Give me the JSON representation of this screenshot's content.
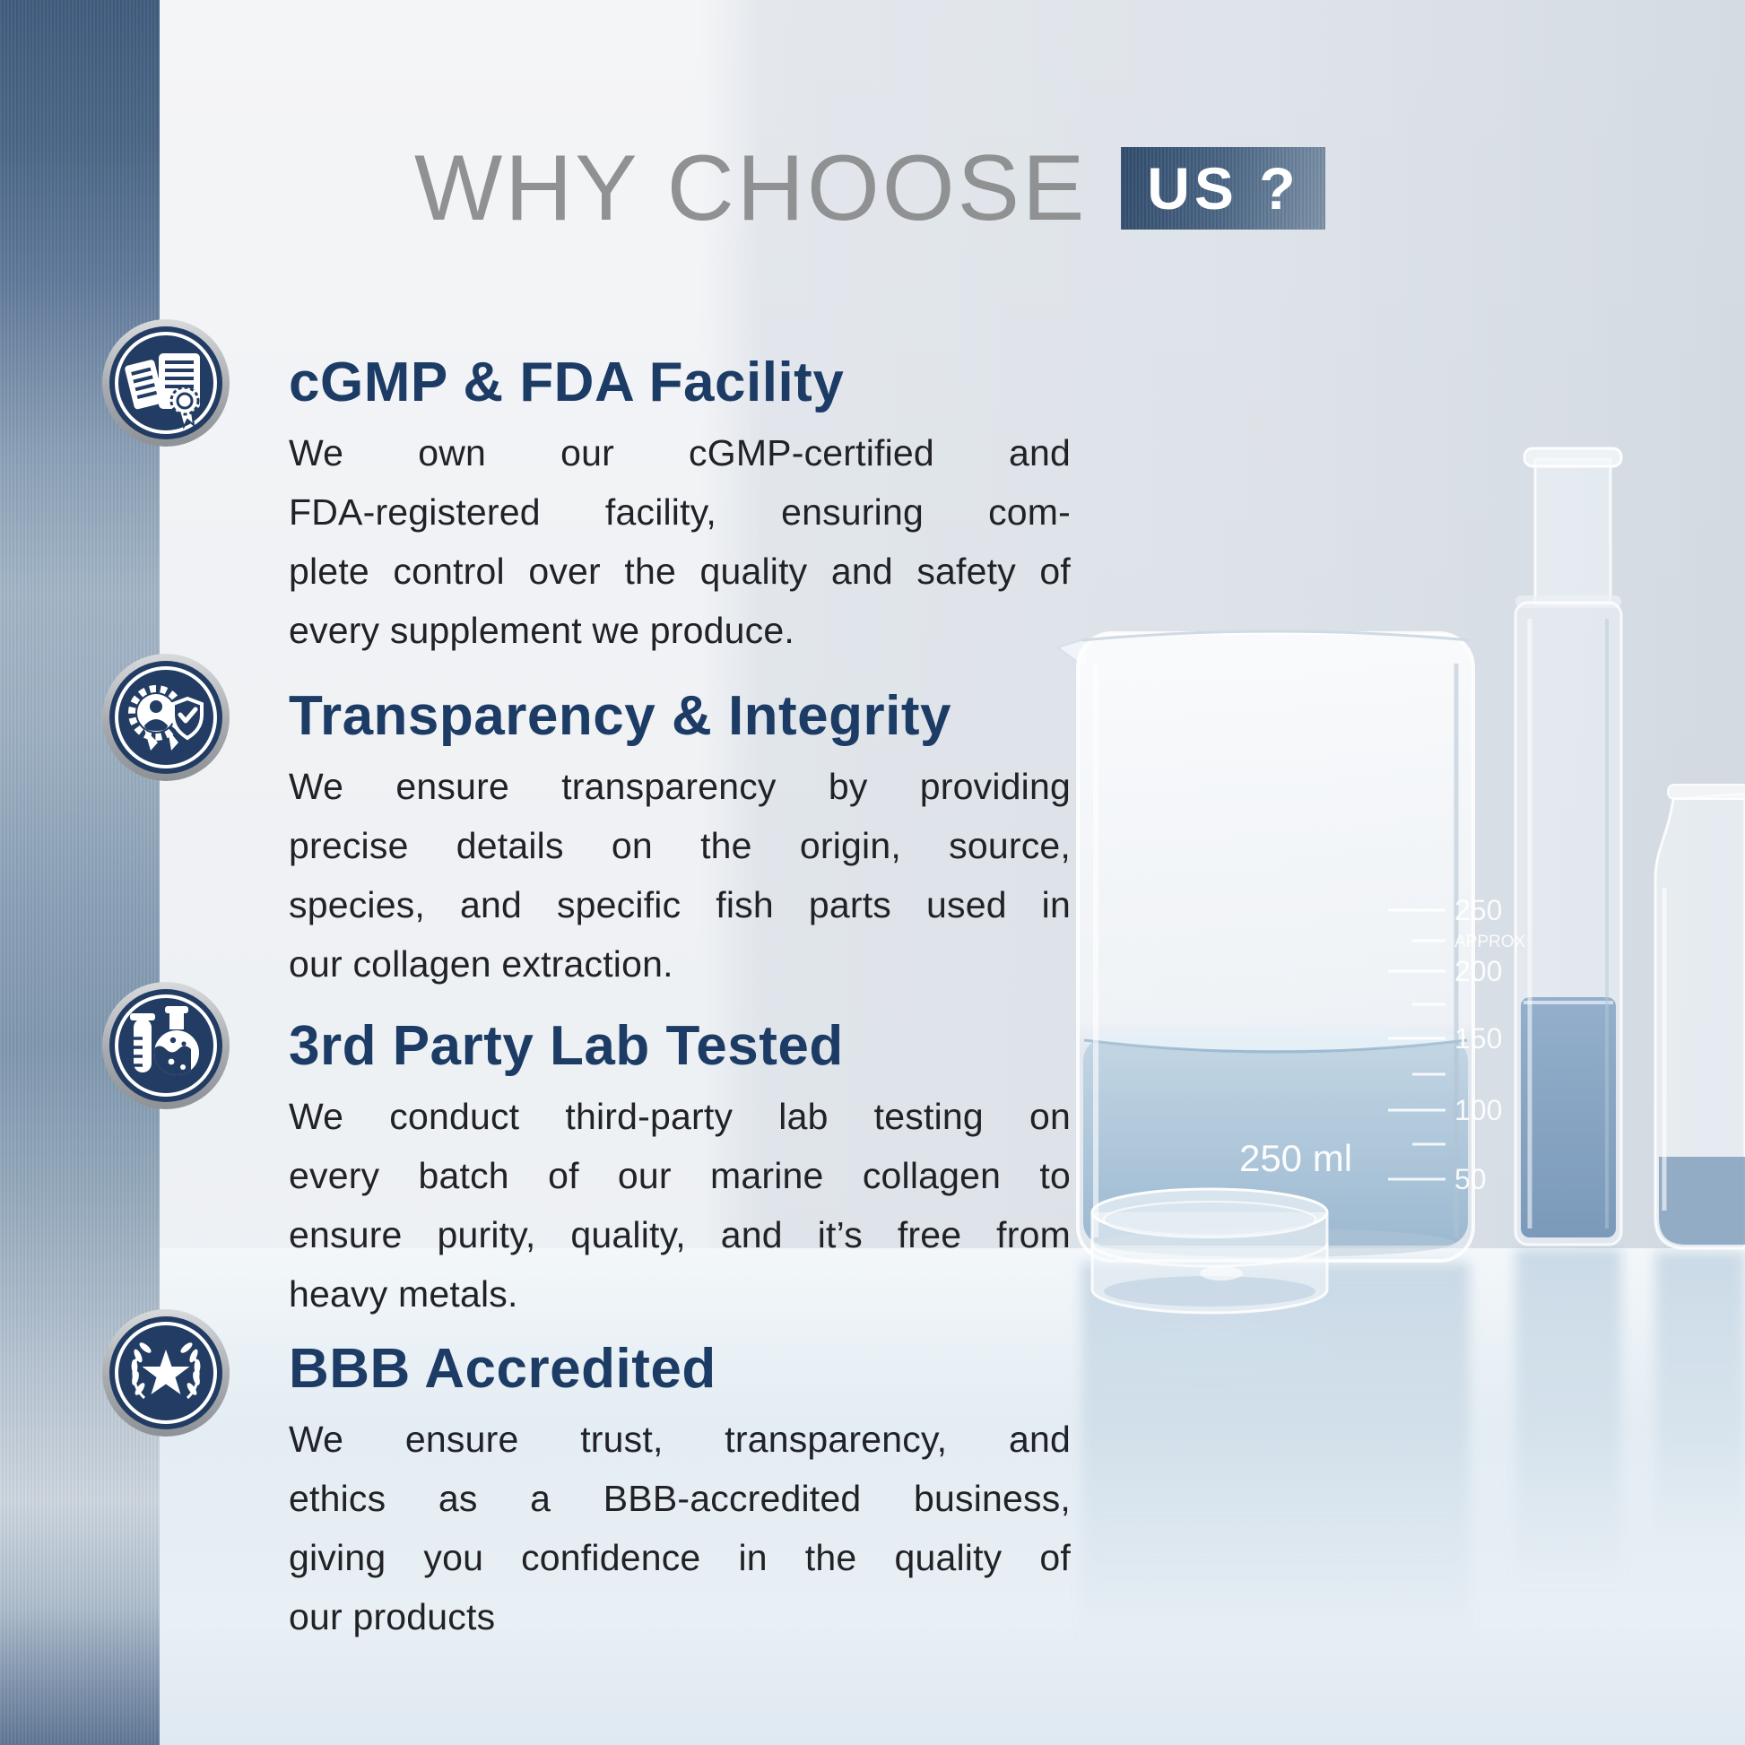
{
  "title": {
    "main": "WHY CHOOSE",
    "highlight": "US ?"
  },
  "sections": [
    {
      "icon": "certificate-documents-icon",
      "heading": "cGMP & FDA Facility",
      "lines": [
        "We own our cGMP-certified and",
        "FDA-registered facility, ensuring com-",
        "plete control over the quality and safety of",
        "every supplement we produce."
      ]
    },
    {
      "icon": "award-badge-shield-icon",
      "heading": "Transparency & Integrity",
      "lines": [
        "We ensure transparency by providing",
        "precise details on the origin, source,",
        "species, and specific fish parts used in",
        "our collagen extraction."
      ]
    },
    {
      "icon": "lab-flask-test-tube-icon",
      "heading": "3rd Party Lab Tested",
      "lines": [
        "We conduct third-party lab testing on",
        "every batch of our marine collagen to",
        "ensure purity, quality, and it’s free from",
        "heavy metals."
      ]
    },
    {
      "icon": "laurel-star-icon",
      "heading": "BBB Accredited",
      "lines": [
        "We ensure trust, transparency, and",
        "ethics as a BBB-accredited business,",
        "giving you confidence in the quality of",
        "our products"
      ]
    }
  ],
  "photo": {
    "beaker": {
      "volume_label": "250 ml",
      "scale_max": "250",
      "scale_approx": "APPROX",
      "scale_marks": [
        "200",
        "150",
        "100",
        "50"
      ]
    }
  },
  "colors": {
    "heading_navy": "#1c3c66",
    "icon_navy": "#223c63",
    "title_gray": "#8f9193",
    "steel_dark": "#304b6b",
    "steel_light": "#7e93a8",
    "liquid_blue": "#a9c3d8",
    "body_text": "#202227"
  }
}
